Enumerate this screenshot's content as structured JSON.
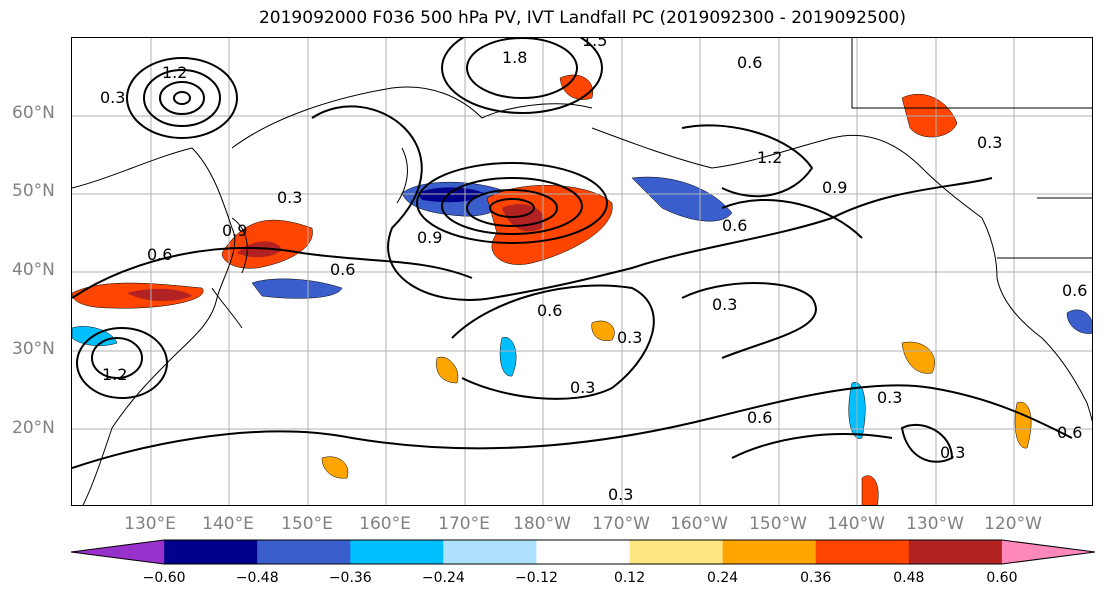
{
  "title": "2019092000 F036 500 hPa PV, IVT Landfall PC (2019092300 - 2019092500)",
  "lat_labels": [
    "60°N",
    "50°N",
    "40°N",
    "30°N",
    "20°N"
  ],
  "lon_labels": [
    "130°E",
    "140°E",
    "150°E",
    "160°E",
    "170°E",
    "180°W",
    "170°W",
    "160°W",
    "150°W",
    "140°W",
    "130°W",
    "120°W"
  ],
  "colorbar": {
    "tick_labels": [
      "−0.60",
      "−0.48",
      "−0.36",
      "−0.24",
      "−0.12",
      "0.12",
      "0.24",
      "0.36",
      "0.48",
      "0.60"
    ],
    "colors": [
      "#9932cc",
      "#00008b",
      "#3a5fcd",
      "#00bfff",
      "#b0e2ff",
      "#ffffff",
      "#ffe680",
      "#ffa500",
      "#ff4500",
      "#b22222",
      "#ff88bb"
    ]
  },
  "contour_labels": [
    "0.3",
    "0.6",
    "0.9",
    "1.2",
    "1.5",
    "1.8"
  ],
  "colors": {
    "gridline": "#b0b0b0",
    "contour": "#000000",
    "axis_label": "#808080"
  }
}
